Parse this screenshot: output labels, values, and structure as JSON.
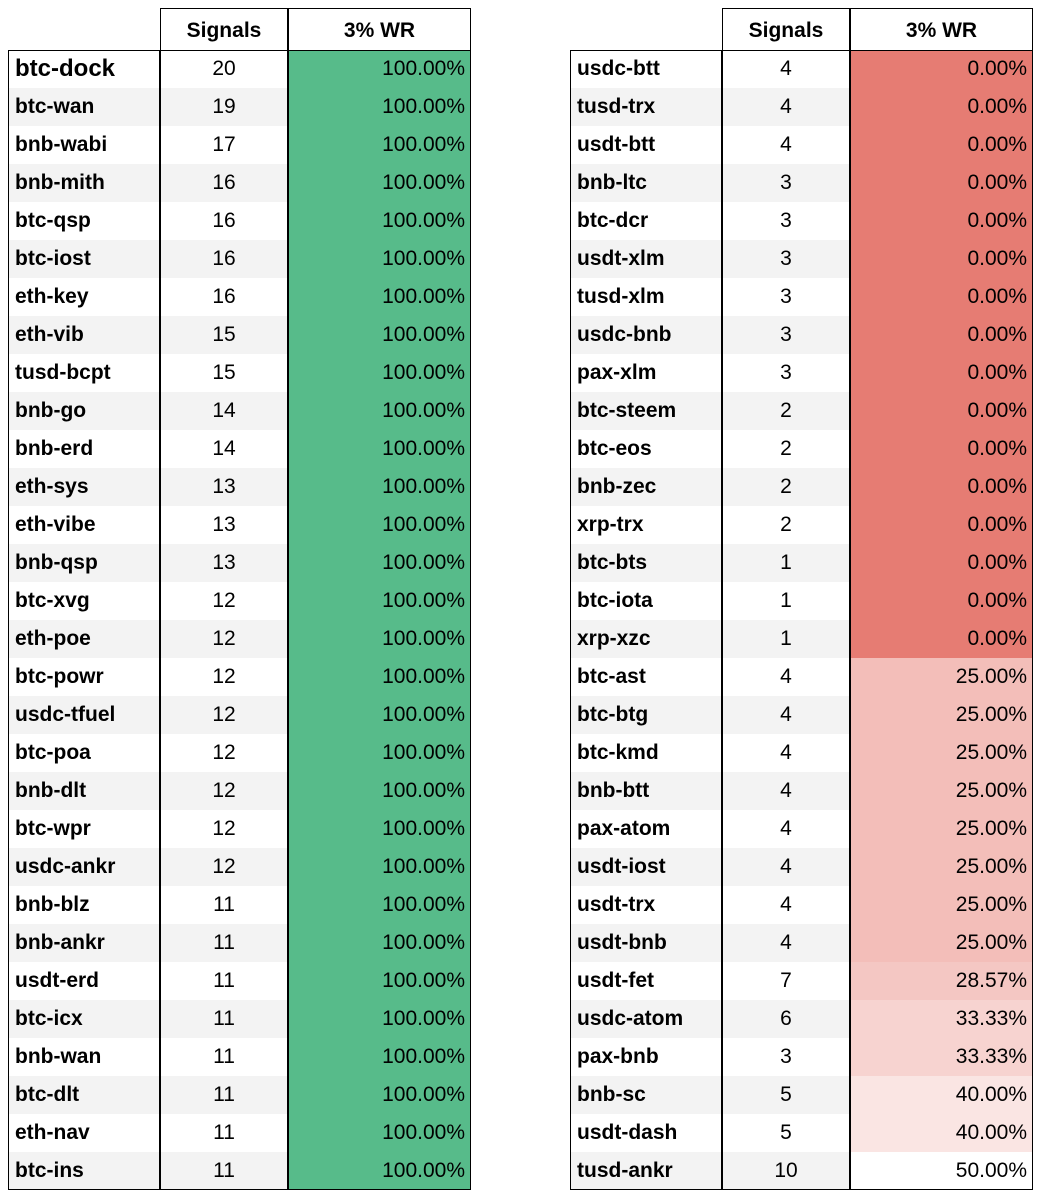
{
  "tables": [
    {
      "header": [
        "Signals",
        "3% WR"
      ],
      "rows": [
        [
          "btc-dock",
          "20",
          "100.00%"
        ],
        [
          "btc-wan",
          "19",
          "100.00%"
        ],
        [
          "bnb-wabi",
          "17",
          "100.00%"
        ],
        [
          "bnb-mith",
          "16",
          "100.00%"
        ],
        [
          "btc-qsp",
          "16",
          "100.00%"
        ],
        [
          "btc-iost",
          "16",
          "100.00%"
        ],
        [
          "eth-key",
          "16",
          "100.00%"
        ],
        [
          "eth-vib",
          "15",
          "100.00%"
        ],
        [
          "tusd-bcpt",
          "15",
          "100.00%"
        ],
        [
          "bnb-go",
          "14",
          "100.00%"
        ],
        [
          "bnb-erd",
          "14",
          "100.00%"
        ],
        [
          "eth-sys",
          "13",
          "100.00%"
        ],
        [
          "eth-vibe",
          "13",
          "100.00%"
        ],
        [
          "bnb-qsp",
          "13",
          "100.00%"
        ],
        [
          "btc-xvg",
          "12",
          "100.00%"
        ],
        [
          "eth-poe",
          "12",
          "100.00%"
        ],
        [
          "btc-powr",
          "12",
          "100.00%"
        ],
        [
          "usdc-tfuel",
          "12",
          "100.00%"
        ],
        [
          "btc-poa",
          "12",
          "100.00%"
        ],
        [
          "bnb-dlt",
          "12",
          "100.00%"
        ],
        [
          "btc-wpr",
          "12",
          "100.00%"
        ],
        [
          "usdc-ankr",
          "12",
          "100.00%"
        ],
        [
          "bnb-blz",
          "11",
          "100.00%"
        ],
        [
          "bnb-ankr",
          "11",
          "100.00%"
        ],
        [
          "usdt-erd",
          "11",
          "100.00%"
        ],
        [
          "btc-icx",
          "11",
          "100.00%"
        ],
        [
          "bnb-wan",
          "11",
          "100.00%"
        ],
        [
          "btc-dlt",
          "11",
          "100.00%"
        ],
        [
          "eth-nav",
          "11",
          "100.00%"
        ],
        [
          "btc-ins",
          "11",
          "100.00%"
        ]
      ]
    },
    {
      "header": [
        "Signals",
        "3% WR"
      ],
      "rows": [
        [
          "usdc-btt",
          "4",
          "0.00%"
        ],
        [
          "tusd-trx",
          "4",
          "0.00%"
        ],
        [
          "usdt-btt",
          "4",
          "0.00%"
        ],
        [
          "bnb-ltc",
          "3",
          "0.00%"
        ],
        [
          "btc-dcr",
          "3",
          "0.00%"
        ],
        [
          "usdt-xlm",
          "3",
          "0.00%"
        ],
        [
          "tusd-xlm",
          "3",
          "0.00%"
        ],
        [
          "usdc-bnb",
          "3",
          "0.00%"
        ],
        [
          "pax-xlm",
          "3",
          "0.00%"
        ],
        [
          "btc-steem",
          "2",
          "0.00%"
        ],
        [
          "btc-eos",
          "2",
          "0.00%"
        ],
        [
          "bnb-zec",
          "2",
          "0.00%"
        ],
        [
          "xrp-trx",
          "2",
          "0.00%"
        ],
        [
          "btc-bts",
          "1",
          "0.00%"
        ],
        [
          "btc-iota",
          "1",
          "0.00%"
        ],
        [
          "xrp-xzc",
          "1",
          "0.00%"
        ],
        [
          "btc-ast",
          "4",
          "25.00%"
        ],
        [
          "btc-btg",
          "4",
          "25.00%"
        ],
        [
          "btc-kmd",
          "4",
          "25.00%"
        ],
        [
          "bnb-btt",
          "4",
          "25.00%"
        ],
        [
          "pax-atom",
          "4",
          "25.00%"
        ],
        [
          "usdt-iost",
          "4",
          "25.00%"
        ],
        [
          "usdt-trx",
          "4",
          "25.00%"
        ],
        [
          "usdt-bnb",
          "4",
          "25.00%"
        ],
        [
          "usdt-fet",
          "7",
          "28.57%"
        ],
        [
          "usdc-atom",
          "6",
          "33.33%"
        ],
        [
          "pax-bnb",
          "3",
          "33.33%"
        ],
        [
          "bnb-sc",
          "5",
          "40.00%"
        ],
        [
          "usdt-dash",
          "5",
          "40.00%"
        ],
        [
          "tusd-ankr",
          "10",
          "50.00%"
        ]
      ]
    }
  ],
  "color_scale": {
    "min": "#e67c73",
    "mid": "#ffffff",
    "max": "#57bb8a"
  }
}
